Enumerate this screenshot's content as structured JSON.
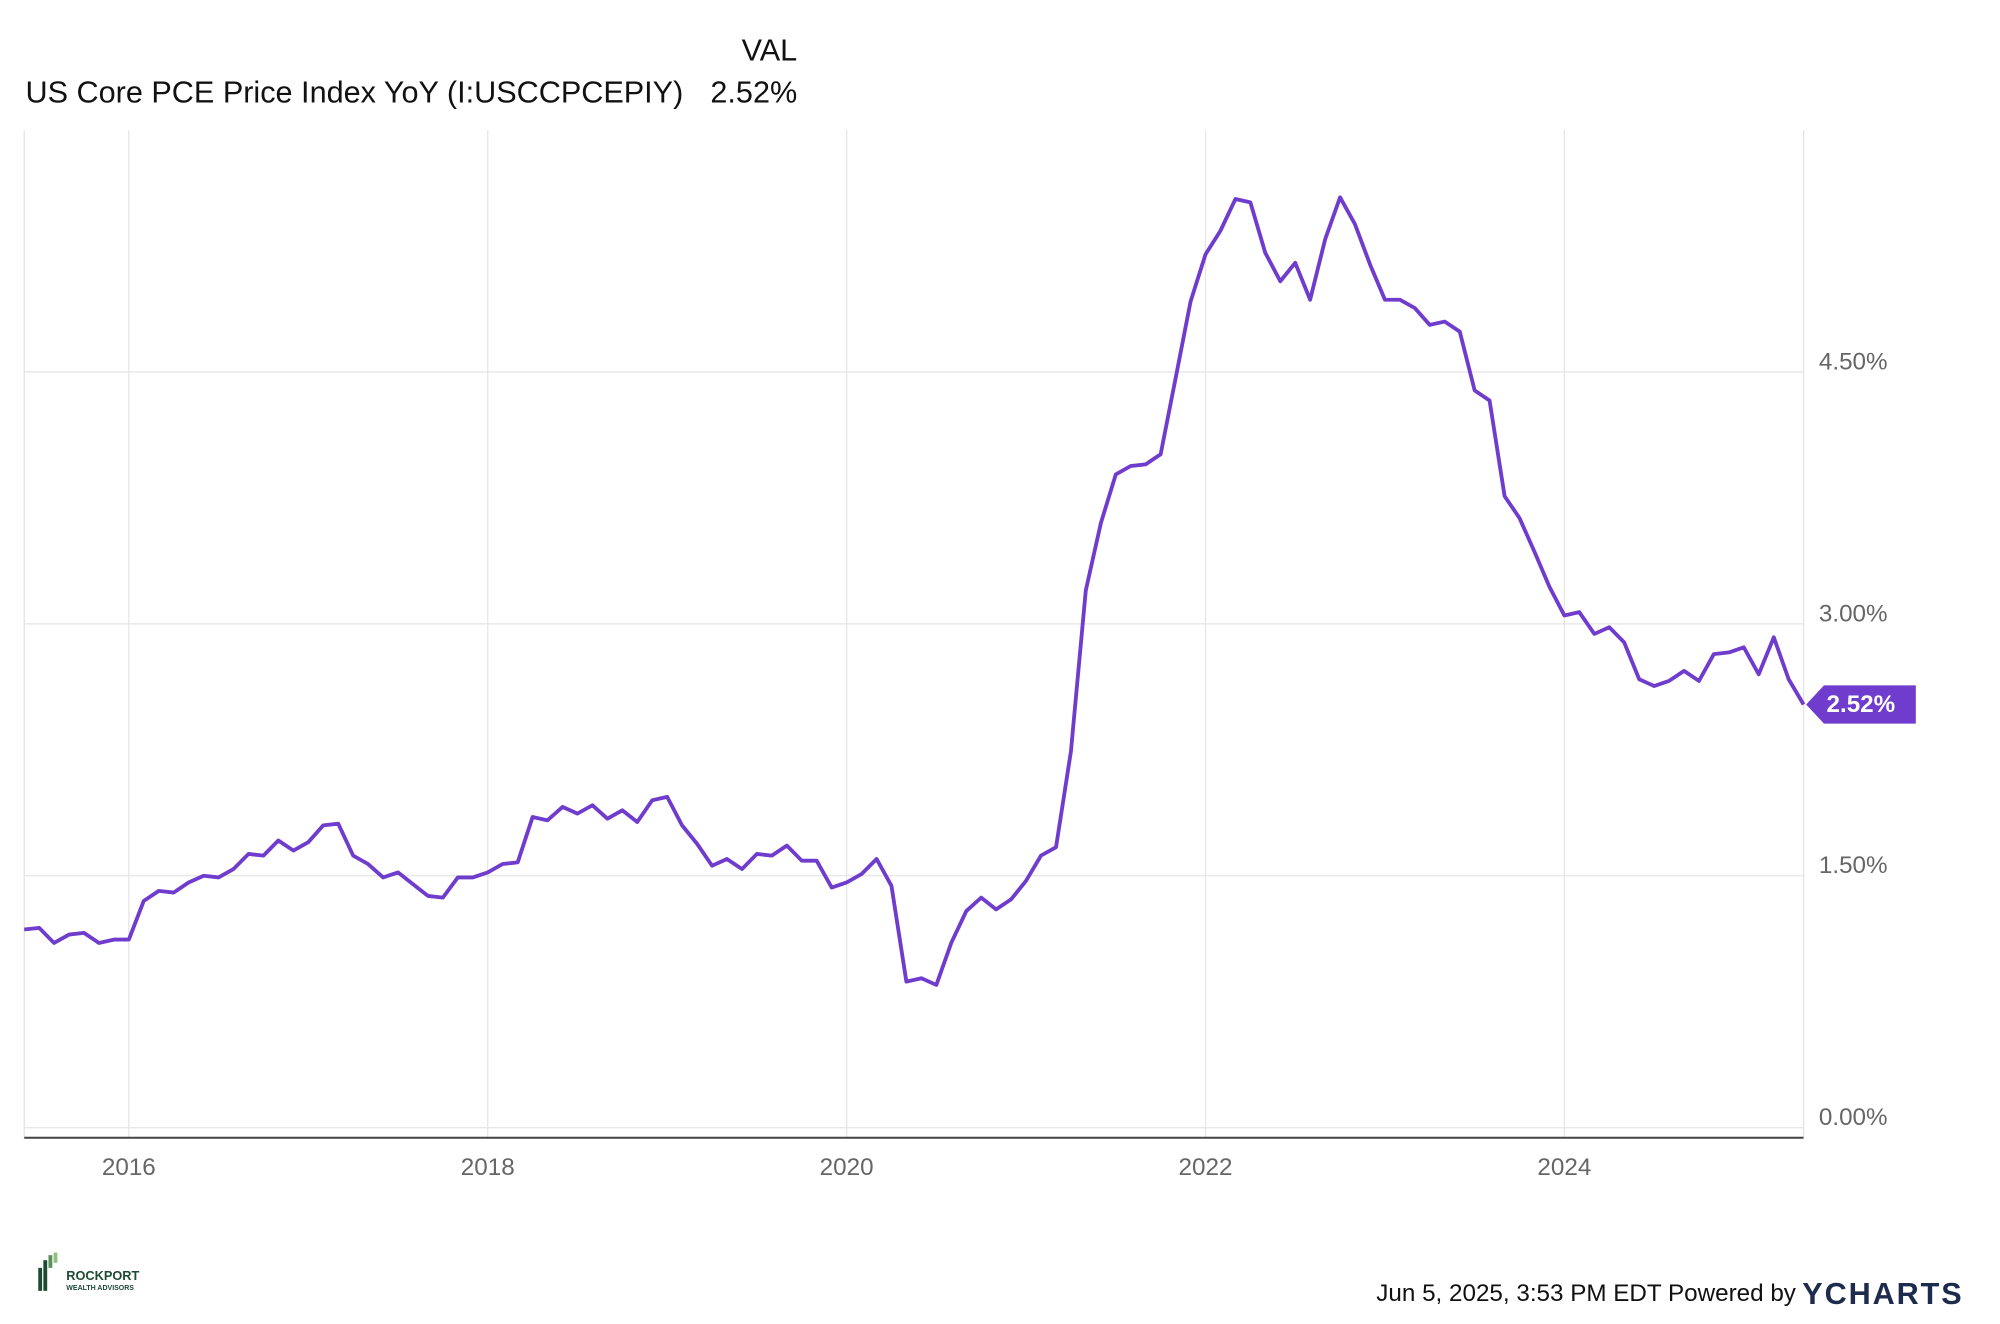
{
  "chart_data": {
    "type": "line",
    "legend_header": "VAL",
    "last_value_label": "2.52%",
    "x": [
      2015.417,
      2015.5,
      2015.583,
      2015.667,
      2015.75,
      2015.833,
      2015.917,
      2016.0,
      2016.083,
      2016.167,
      2016.25,
      2016.333,
      2016.417,
      2016.5,
      2016.583,
      2016.667,
      2016.75,
      2016.833,
      2016.917,
      2017.0,
      2017.083,
      2017.167,
      2017.25,
      2017.333,
      2017.417,
      2017.5,
      2017.583,
      2017.667,
      2017.75,
      2017.833,
      2017.917,
      2018.0,
      2018.083,
      2018.167,
      2018.25,
      2018.333,
      2018.417,
      2018.5,
      2018.583,
      2018.667,
      2018.75,
      2018.833,
      2018.917,
      2019.0,
      2019.083,
      2019.167,
      2019.25,
      2019.333,
      2019.417,
      2019.5,
      2019.583,
      2019.667,
      2019.75,
      2019.833,
      2019.917,
      2020.0,
      2020.083,
      2020.167,
      2020.25,
      2020.333,
      2020.417,
      2020.5,
      2020.583,
      2020.667,
      2020.75,
      2020.833,
      2020.917,
      2021.0,
      2021.083,
      2021.167,
      2021.25,
      2021.333,
      2021.417,
      2021.5,
      2021.583,
      2021.667,
      2021.75,
      2021.833,
      2021.917,
      2022.0,
      2022.083,
      2022.167,
      2022.25,
      2022.333,
      2022.417,
      2022.5,
      2022.583,
      2022.667,
      2022.75,
      2022.833,
      2022.917,
      2023.0,
      2023.083,
      2023.167,
      2023.25,
      2023.333,
      2023.417,
      2023.5,
      2023.583,
      2023.667,
      2023.75,
      2023.833,
      2023.917,
      2024.0,
      2024.083,
      2024.167,
      2024.25,
      2024.333,
      2024.417,
      2024.5,
      2024.583,
      2024.667,
      2024.75,
      2024.833,
      2024.917,
      2025.0,
      2025.083,
      2025.167,
      2025.25,
      2025.333
    ],
    "series": [
      {
        "name": "US Core PCE Price Index YoY (I:USCCPCEPIY)",
        "color": "#6f3ccd",
        "values": [
          1.18,
          1.19,
          1.1,
          1.15,
          1.16,
          1.1,
          1.12,
          1.12,
          1.35,
          1.41,
          1.4,
          1.46,
          1.5,
          1.49,
          1.54,
          1.63,
          1.62,
          1.71,
          1.65,
          1.7,
          1.8,
          1.81,
          1.62,
          1.57,
          1.49,
          1.52,
          1.45,
          1.38,
          1.37,
          1.49,
          1.49,
          1.52,
          1.57,
          1.58,
          1.85,
          1.83,
          1.91,
          1.87,
          1.92,
          1.84,
          1.89,
          1.82,
          1.95,
          1.97,
          1.8,
          1.69,
          1.56,
          1.6,
          1.54,
          1.63,
          1.62,
          1.68,
          1.59,
          1.59,
          1.43,
          1.46,
          1.51,
          1.6,
          1.44,
          0.87,
          0.89,
          0.85,
          1.1,
          1.29,
          1.37,
          1.3,
          1.36,
          1.47,
          1.62,
          1.67,
          2.24,
          3.2,
          3.6,
          3.89,
          3.94,
          3.95,
          4.01,
          4.46,
          4.92,
          5.2,
          5.34,
          5.53,
          5.51,
          5.21,
          5.04,
          5.15,
          4.93,
          5.29,
          5.54,
          5.38,
          5.14,
          4.93,
          4.93,
          4.88,
          4.78,
          4.8,
          4.74,
          4.39,
          4.33,
          3.76,
          3.63,
          3.43,
          3.22,
          3.05,
          3.07,
          2.94,
          2.98,
          2.89,
          2.67,
          2.63,
          2.66,
          2.72,
          2.66,
          2.82,
          2.83,
          2.86,
          2.7,
          2.92,
          2.67,
          2.52
        ]
      }
    ],
    "xlim": [
      2015.417,
      2025.333
    ],
    "xticks": [
      2016,
      2018,
      2020,
      2022,
      2024
    ],
    "ylim": [
      -0.06,
      5.94
    ],
    "yticks": [
      {
        "value": 0,
        "label": "0.00%"
      },
      {
        "value": 1.5,
        "label": "1.50%"
      },
      {
        "value": 3,
        "label": "3.00%"
      },
      {
        "value": 4.5,
        "label": "4.50%"
      }
    ],
    "grid": true,
    "footer": "Jun 5, 2025, 3:53 PM EDT Powered by",
    "source_brand": "YCHARTS",
    "logo_name": "ROCKPORT",
    "logo_subtitle": "WEALTH ADVISORS"
  }
}
